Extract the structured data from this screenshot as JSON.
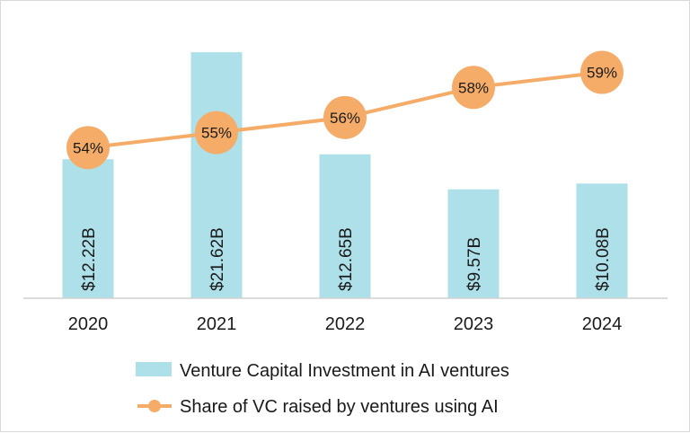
{
  "chart_data": {
    "type": "bar+line",
    "categories": [
      "2020",
      "2021",
      "2022",
      "2023",
      "2024"
    ],
    "series": [
      {
        "name": "Venture Capital Investment in AI ventures",
        "type": "bar",
        "values": [
          12.22,
          21.62,
          12.65,
          9.57,
          10.08
        ],
        "labels": [
          "$12.22B",
          "$21.62B",
          "$12.65B",
          "$9.57B",
          "$10.08B"
        ],
        "unit": "billion USD",
        "color": "#aee0e9"
      },
      {
        "name": "Share of VC raised by ventures using AI",
        "type": "line",
        "values": [
          54,
          55,
          56,
          58,
          59
        ],
        "labels": [
          "54%",
          "55%",
          "56%",
          "58%",
          "59%"
        ],
        "unit": "percent",
        "color": "#f5ac68"
      }
    ],
    "title": "",
    "xlabel": "",
    "ylabel": "",
    "bar_ylim": [
      0,
      22.5
    ],
    "line_ylim": [
      44,
      61
    ],
    "grid": false,
    "legend": "bottom"
  }
}
